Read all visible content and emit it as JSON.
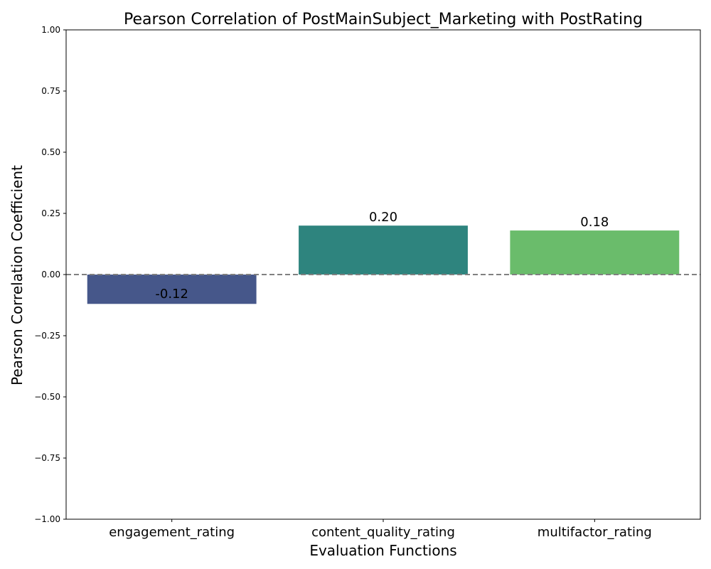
{
  "chart_data": {
    "type": "bar",
    "title": "Pearson Correlation of PostMainSubject_Marketing   with PostRating",
    "xlabel": "Evaluation Functions",
    "ylabel": "Pearson Correlation Coefficient",
    "categories": [
      "engagement_rating",
      "content_quality_rating",
      "multifactor_rating"
    ],
    "values": [
      -0.12,
      0.2,
      0.18
    ],
    "value_labels": [
      "-0.12",
      "0.20",
      "0.18"
    ],
    "colors": [
      "#46578a",
      "#2e847e",
      "#6abc6b"
    ],
    "ylim": [
      -1.0,
      1.0
    ],
    "yticks": [
      "−1.00",
      "−0.75",
      "−0.50",
      "−0.25",
      "0.00",
      "0.25",
      "0.50",
      "0.75",
      "1.00"
    ],
    "ytick_values": [
      -1.0,
      -0.75,
      -0.5,
      -0.25,
      0.0,
      0.25,
      0.5,
      0.75,
      1.0
    ],
    "reference_line": {
      "y": 0.0,
      "style": "dashed",
      "color": "#808080"
    },
    "grid": false,
    "legend": "none"
  }
}
